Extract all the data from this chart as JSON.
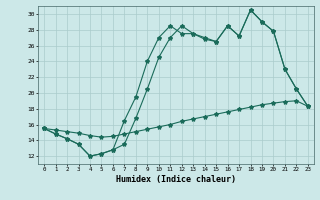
{
  "title": "",
  "xlabel": "Humidex (Indice chaleur)",
  "bg_color": "#cce8e8",
  "grid_color": "#aacccc",
  "line_color": "#1a6b5a",
  "xlim": [
    -0.5,
    23.5
  ],
  "ylim": [
    11,
    31
  ],
  "yticks": [
    12,
    14,
    16,
    18,
    20,
    22,
    24,
    26,
    28,
    30
  ],
  "xticks": [
    0,
    1,
    2,
    3,
    4,
    5,
    6,
    7,
    8,
    9,
    10,
    11,
    12,
    13,
    14,
    15,
    16,
    17,
    18,
    19,
    20,
    21,
    22,
    23
  ],
  "line1_x": [
    0,
    1,
    2,
    3,
    4,
    5,
    6,
    7,
    8,
    9,
    10,
    11,
    12,
    13,
    14,
    15,
    16,
    17,
    18,
    19,
    20,
    21,
    22,
    23
  ],
  "line1_y": [
    15.5,
    14.8,
    14.2,
    13.5,
    12.0,
    12.3,
    12.8,
    13.5,
    16.8,
    20.5,
    24.5,
    27.0,
    28.5,
    27.5,
    26.8,
    26.5,
    28.5,
    27.2,
    30.5,
    29.0,
    27.8,
    23.0,
    20.5,
    18.3
  ],
  "line2_x": [
    0,
    1,
    2,
    3,
    4,
    5,
    6,
    7,
    8,
    9,
    10,
    11,
    12,
    13,
    14,
    15,
    16,
    17,
    18,
    19,
    20,
    21,
    22,
    23
  ],
  "line2_y": [
    15.5,
    15.3,
    15.1,
    14.9,
    14.6,
    14.4,
    14.5,
    14.8,
    15.1,
    15.4,
    15.7,
    16.0,
    16.4,
    16.7,
    17.0,
    17.3,
    17.6,
    17.9,
    18.2,
    18.5,
    18.7,
    18.9,
    19.0,
    18.3
  ],
  "line3_x": [
    0,
    1,
    2,
    3,
    4,
    5,
    6,
    7,
    8,
    9,
    10,
    11,
    12,
    13,
    14,
    15,
    16,
    17,
    18,
    19,
    20,
    21,
    22,
    23
  ],
  "line3_y": [
    15.5,
    14.8,
    14.2,
    13.5,
    12.0,
    12.3,
    12.8,
    16.5,
    19.5,
    24.0,
    27.0,
    28.5,
    27.5,
    27.5,
    27.0,
    26.5,
    28.5,
    27.2,
    30.5,
    29.0,
    27.8,
    23.0,
    20.5,
    18.3
  ]
}
